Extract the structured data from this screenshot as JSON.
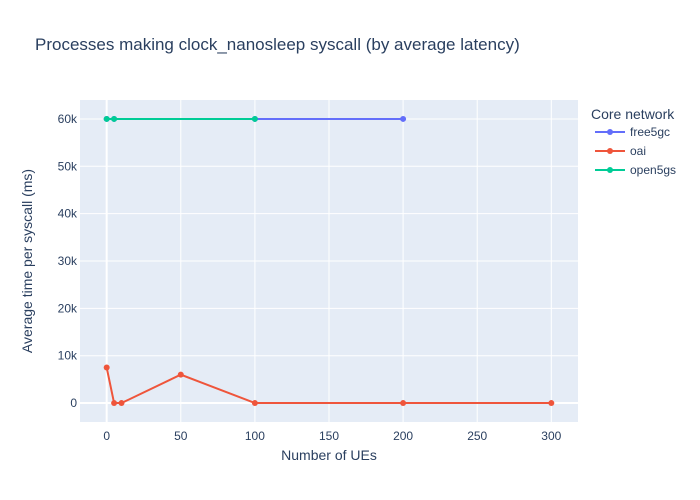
{
  "chart_data": {
    "type": "line",
    "title": "Processes making clock_nanosleep syscall (by average latency)",
    "xlabel": "Number of UEs",
    "ylabel": "Average time per syscall (ms)",
    "xlim": [
      -18,
      318
    ],
    "ylim": [
      -4000,
      64000
    ],
    "x_ticks": [
      0,
      50,
      100,
      150,
      200,
      250,
      300
    ],
    "x_tick_labels": [
      "0",
      "50",
      "100",
      "150",
      "200",
      "250",
      "300"
    ],
    "y_ticks": [
      0,
      10000,
      20000,
      30000,
      40000,
      50000,
      60000
    ],
    "y_tick_labels": [
      "0",
      "10k",
      "20k",
      "30k",
      "40k",
      "50k",
      "60k"
    ],
    "grid": true,
    "legend": {
      "title": "Core network",
      "placement": "right"
    },
    "series": [
      {
        "name": "free5gc",
        "color": "#636efa",
        "x": [
          0,
          5,
          100,
          200
        ],
        "y": [
          60000,
          60000,
          60000,
          60000
        ]
      },
      {
        "name": "oai",
        "color": "#ef553b",
        "x": [
          0,
          5,
          10,
          50,
          100,
          200,
          300
        ],
        "y": [
          7500,
          0,
          0,
          6000,
          0,
          0,
          0
        ]
      },
      {
        "name": "open5gs",
        "color": "#00cc96",
        "x": [
          0,
          5,
          100
        ],
        "y": [
          60000,
          60000,
          60000
        ]
      }
    ]
  }
}
